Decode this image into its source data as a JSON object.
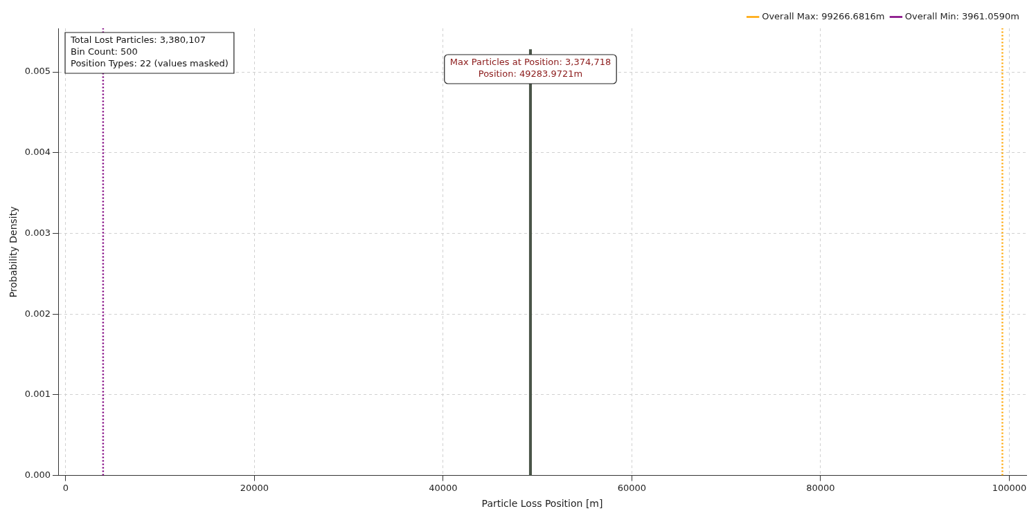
{
  "chart_data": {
    "type": "histogram",
    "xlabel": "Particle Loss Position [m]",
    "ylabel": "Probability Density",
    "bins": [
      49100,
      49400
    ],
    "values": [
      0.00528
    ],
    "color": "#4a5548",
    "xlim": [
      -800,
      101800
    ],
    "xticks": [
      0,
      20000,
      40000,
      60000,
      80000,
      100000
    ],
    "ylim": [
      0,
      0.00554
    ],
    "yticks": [
      {
        "value": 0,
        "label": "0.000"
      },
      {
        "value": 0.001,
        "label": "0.001"
      },
      {
        "value": 0.002,
        "label": "0.002"
      },
      {
        "value": 0.003,
        "label": "0.003"
      },
      {
        "value": 0.004,
        "label": "0.004"
      },
      {
        "value": 0.005,
        "label": "0.005"
      }
    ],
    "grid": true,
    "legend": "top right",
    "ref_lines": [
      {
        "axis": "x",
        "value": 99266.6816,
        "label": "Overall Max: 99266.6816m",
        "color": "#ffa500",
        "line_style": "dotted"
      },
      {
        "axis": "x",
        "value": 3961.059,
        "label": "Overall Min: 3961.0590m",
        "color": "#800080",
        "line_style": "dotted"
      }
    ],
    "annotations": [
      "Total Lost Particles: 3,380,107\nBin Count: 500\nPosition Types: 22 (values masked)",
      "Max Particles at Position: 3,374,718\nPosition: 49283.9721m"
    ]
  }
}
